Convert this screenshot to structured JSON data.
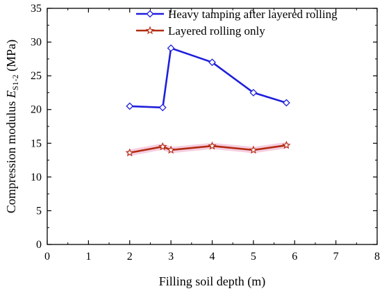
{
  "chart_data": {
    "type": "line",
    "xlabel": "Filling soil depth (m)",
    "ylabel": {
      "prefix": "Compression modulus ",
      "symbol": "E",
      "subscript": "S1-2",
      "suffix": " (MPa)"
    },
    "xlim": [
      0,
      8
    ],
    "ylim": [
      0,
      35
    ],
    "x_ticks": [
      0,
      1,
      2,
      3,
      4,
      5,
      6,
      7,
      8
    ],
    "y_ticks": [
      0,
      5,
      10,
      15,
      20,
      25,
      30,
      35
    ],
    "grid": false,
    "legend_position": "top-right",
    "series": [
      {
        "name": "Heavy tamping after layered rolling",
        "marker": "diamond",
        "color": "#1f1fdc",
        "x": [
          2,
          2.8,
          3,
          4,
          5,
          5.8
        ],
        "y": [
          20.5,
          20.3,
          29.1,
          27.0,
          22.5,
          21.0
        ]
      },
      {
        "name": "Layered rolling only",
        "marker": "star",
        "color": "#b22b10",
        "band_color": "#f4c6dc",
        "x": [
          2,
          2.8,
          3,
          4,
          5,
          5.8
        ],
        "y": [
          13.6,
          14.5,
          14.0,
          14.6,
          14.0,
          14.7
        ]
      }
    ]
  }
}
